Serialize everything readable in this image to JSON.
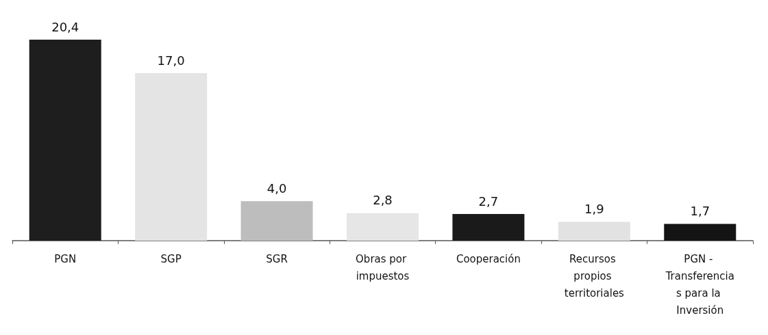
{
  "chart_data": {
    "type": "bar",
    "categories": [
      "PGN",
      "SGP",
      "SGR",
      "Obras por impuestos",
      "Cooperación",
      "Recursos propios territoriales",
      "PGN - Transferencias para la Inversión"
    ],
    "values": [
      20.4,
      17.0,
      4.0,
      2.8,
      2.7,
      1.9,
      1.7
    ],
    "colors": [
      "#1e1e1e",
      "#e4e4e4",
      "#bdbdbd",
      "#e6e6e6",
      "#1a1a1a",
      "#e2e2e2",
      "#141414"
    ],
    "value_labels": [
      "20,4",
      "17,0",
      "4,0",
      "2,8",
      "2,7",
      "1,9",
      "1,7"
    ]
  }
}
